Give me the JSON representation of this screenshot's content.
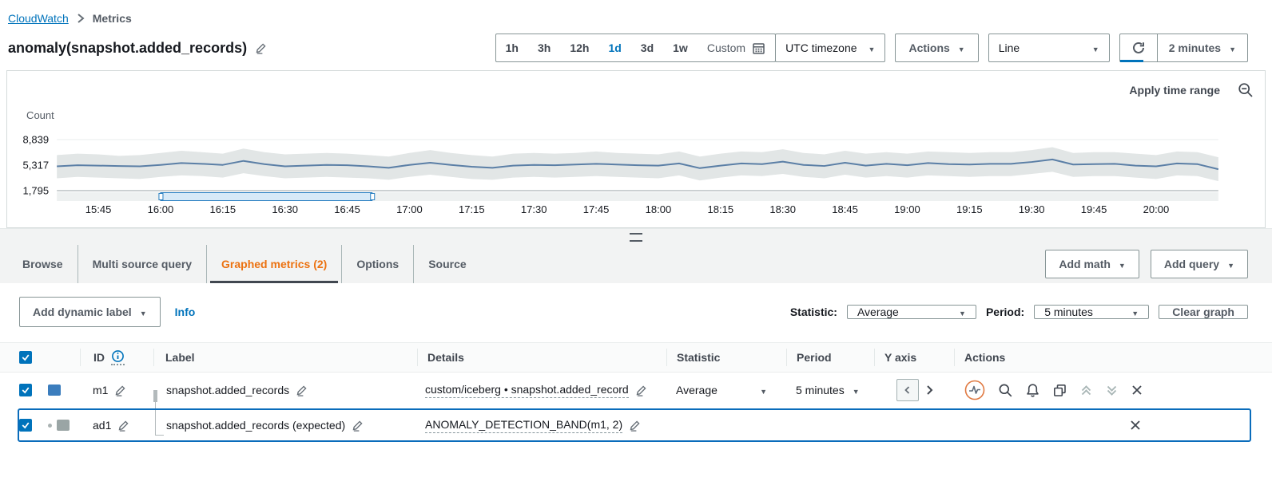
{
  "breadcrumb": {
    "root": "CloudWatch",
    "current": "Metrics"
  },
  "header": {
    "title": "anomaly(snapshot.added_records)"
  },
  "toolbar": {
    "ranges": [
      "1h",
      "3h",
      "12h",
      "1d",
      "3d",
      "1w"
    ],
    "active_range": "1d",
    "custom": "Custom",
    "timezone": "UTC timezone",
    "actions": "Actions",
    "chart_type": "Line",
    "refresh_interval": "2 minutes"
  },
  "chart_panel": {
    "apply_time_range": "Apply time range"
  },
  "chart_data": {
    "type": "line",
    "unit_label": "Count",
    "yticks": [
      1795,
      5317,
      8839
    ],
    "ytick_labels": [
      "1,795",
      "5,317",
      "8,839"
    ],
    "ylim": [
      1795,
      9900
    ],
    "grid": true,
    "x_start": "15:35",
    "x_step_minutes": 5,
    "xtick_labels": [
      "15:45",
      "16:00",
      "16:15",
      "16:30",
      "16:45",
      "17:00",
      "17:15",
      "17:30",
      "17:45",
      "18:00",
      "18:15",
      "18:30",
      "18:45",
      "19:00",
      "19:15",
      "19:30",
      "19:45",
      "20:00"
    ],
    "xtick_indices": [
      2,
      5,
      8,
      11,
      14,
      17,
      20,
      23,
      26,
      29,
      32,
      35,
      38,
      41,
      44,
      47,
      50,
      53
    ],
    "selection": {
      "start_index": 5,
      "end_index": 15.2
    },
    "series": [
      {
        "name": "snapshot.added_records",
        "type": "line",
        "color": "#5b7fa6",
        "values": [
          5150,
          5300,
          5250,
          5200,
          5150,
          5350,
          5600,
          5500,
          5350,
          5900,
          5450,
          5150,
          5250,
          5350,
          5300,
          5150,
          4950,
          5350,
          5650,
          5350,
          5100,
          4950,
          5250,
          5350,
          5300,
          5400,
          5500,
          5400,
          5300,
          5250,
          5550,
          4900,
          5250,
          5550,
          5450,
          5800,
          5350,
          5200,
          5650,
          5250,
          5500,
          5300,
          5600,
          5450,
          5400,
          5500,
          5500,
          5750,
          6100,
          5400,
          5450,
          5500,
          5250,
          5150,
          5550,
          5450,
          4750
        ]
      },
      {
        "name": "snapshot.added_records (expected)",
        "type": "band",
        "color": "#e2e6e6",
        "upper": [
          6700,
          6900,
          6800,
          6600,
          6700,
          7000,
          7300,
          7100,
          6900,
          7600,
          7100,
          6800,
          6900,
          7000,
          6900,
          6700,
          6500,
          7000,
          7400,
          7000,
          6700,
          6500,
          6900,
          7000,
          6900,
          7000,
          7200,
          7000,
          6900,
          6800,
          7200,
          6500,
          6900,
          7200,
          7100,
          7500,
          7000,
          6800,
          7300,
          6900,
          7100,
          6900,
          7200,
          7100,
          7000,
          7100,
          7100,
          7400,
          7800,
          7000,
          7100,
          7100,
          6900,
          6700,
          7200,
          7100,
          6400
        ],
        "lower": [
          3500,
          3700,
          3600,
          3500,
          3400,
          3700,
          3900,
          3800,
          3600,
          4200,
          3800,
          3500,
          3600,
          3700,
          3600,
          3500,
          3300,
          3700,
          4000,
          3700,
          3400,
          3300,
          3600,
          3700,
          3600,
          3700,
          3800,
          3700,
          3600,
          3500,
          3900,
          3200,
          3600,
          3900,
          3800,
          4100,
          3700,
          3500,
          4000,
          3600,
          3800,
          3600,
          3900,
          3800,
          3700,
          3800,
          3800,
          4100,
          4400,
          3700,
          3800,
          3800,
          3600,
          3400,
          3900,
          3800,
          3100
        ]
      }
    ]
  },
  "tabs": {
    "items": [
      "Browse",
      "Multi source query",
      "Graphed metrics (2)",
      "Options",
      "Source"
    ],
    "active_index": 2
  },
  "tab_actions": {
    "add_math": "Add math",
    "add_query": "Add query"
  },
  "controls": {
    "add_dynamic_label": "Add dynamic label",
    "info": "Info",
    "statistic_label": "Statistic:",
    "statistic_value": "Average",
    "period_label": "Period:",
    "period_value": "5 minutes",
    "clear_graph": "Clear graph"
  },
  "table": {
    "columns": {
      "id": "ID",
      "label": "Label",
      "details": "Details",
      "statistic": "Statistic",
      "period": "Period",
      "y_axis": "Y axis",
      "actions": "Actions"
    },
    "rows": [
      {
        "id": "m1",
        "label": "snapshot.added_records",
        "details": "custom/iceberg • snapshot.added_record",
        "statistic": "Average",
        "period": "5 minutes",
        "selected": false,
        "checked": true
      },
      {
        "id": "ad1",
        "label": "snapshot.added_records (expected)",
        "details": "ANOMALY_DETECTION_BAND(m1, 2)",
        "selected": true,
        "checked": true
      }
    ]
  },
  "icons": {
    "edit": "pencil",
    "calendar": "calendar-grid",
    "refresh": "circular-arrow",
    "zoom_out": "magnifier-minus",
    "info": "circled-i",
    "anomaly": "pulse-in-circle",
    "search": "magnifier",
    "alarm": "bell",
    "duplicate": "overlapping-squares",
    "move_up": "double-chevron-up",
    "move_down": "double-chevron-down",
    "remove": "x"
  },
  "colors": {
    "accent": "#0073bb",
    "active_tab": "#ec7211",
    "line": "#5b7fa6",
    "band": "#e2e6e6",
    "swatch_m1": "#3b7dbd",
    "swatch_ad1": "#9aa5a5",
    "selected_border": "#0a6cbb",
    "axis": "#97a2a4"
  }
}
